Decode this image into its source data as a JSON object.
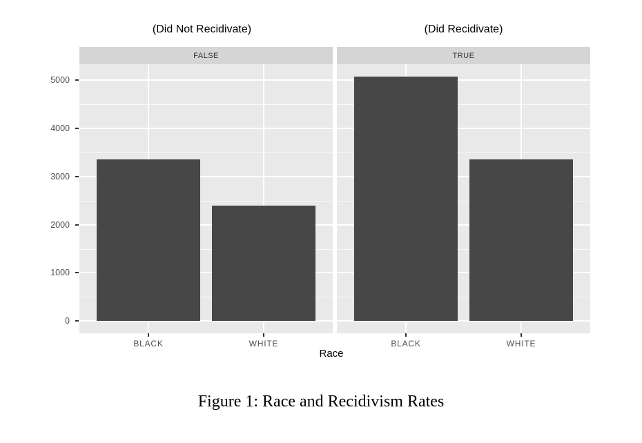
{
  "caption": "Figure 1: Race and Recidivism Rates",
  "chart_data": {
    "type": "bar",
    "title": "",
    "xlabel": "Race",
    "ylabel": "",
    "categories": [
      "BLACK",
      "WHITE"
    ],
    "facets": [
      {
        "title": "(Did Not Recidivate)",
        "strip_label": "FALSE",
        "values": [
          3350,
          2400
        ]
      },
      {
        "title": "(Did Recidivate)",
        "strip_label": "TRUE",
        "values": [
          5080,
          3360
        ]
      }
    ],
    "y_major": [
      0,
      1000,
      2000,
      3000,
      4000,
      5000
    ],
    "y_minor": [
      500,
      1500,
      2500,
      3500,
      4500
    ],
    "ylim": [
      -254,
      5334
    ],
    "grid": true,
    "legend_position": "none",
    "colors": {
      "bar": "#474747",
      "panel_bg": "#e9e9e9",
      "strip_bg": "#d5d5d5",
      "gridline": "#ffffff",
      "axis_text": "#4d4d4d",
      "tick_mark": "#333333",
      "title_text": "#000000"
    },
    "layout": {
      "bar_center_pct": [
        27.25,
        72.75
      ],
      "bar_width_pct": 40.9
    }
  }
}
